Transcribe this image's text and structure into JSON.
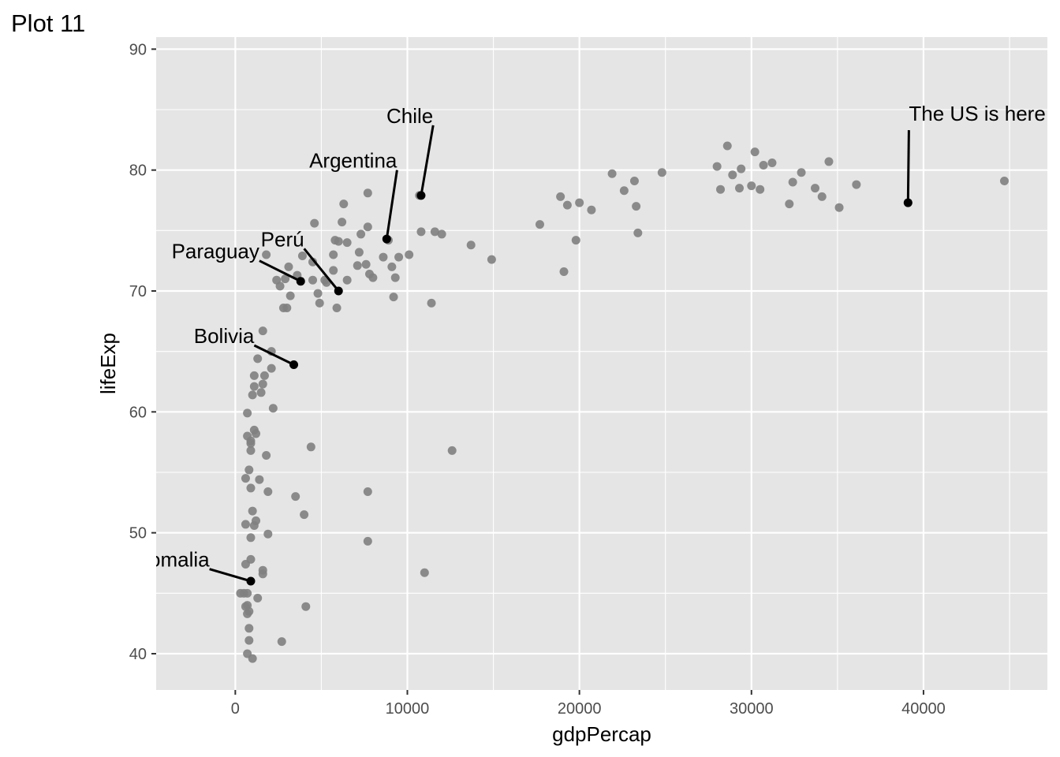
{
  "title": "Plot 11",
  "chart_data": {
    "type": "scatter",
    "xlabel": "gdpPercap",
    "ylabel": "lifeExp",
    "xlim": [
      -4600,
      47200
    ],
    "ylim": [
      37,
      91
    ],
    "x_ticks": [
      0,
      10000,
      20000,
      30000,
      40000
    ],
    "y_ticks": [
      40,
      50,
      60,
      70,
      80,
      90
    ],
    "x_tick_labels": [
      "0",
      "10000",
      "20000",
      "30000",
      "40000"
    ],
    "y_tick_labels": [
      "40",
      "50",
      "60",
      "70",
      "80",
      "90"
    ],
    "grid": true,
    "colors": {
      "panel": "#e5e5e5",
      "grid": "#ffffff",
      "point": "#7f7f7f",
      "highlight": "#000000"
    },
    "points": [
      [
        44700,
        79.1
      ],
      [
        39100,
        77.3
      ],
      [
        36100,
        78.8
      ],
      [
        35100,
        76.9
      ],
      [
        34500,
        80.7
      ],
      [
        34100,
        77.8
      ],
      [
        33700,
        78.5
      ],
      [
        32900,
        79.8
      ],
      [
        32400,
        79.0
      ],
      [
        32200,
        77.2
      ],
      [
        31200,
        80.6
      ],
      [
        30700,
        80.4
      ],
      [
        30500,
        78.4
      ],
      [
        30200,
        81.5
      ],
      [
        30000,
        78.7
      ],
      [
        29400,
        80.1
      ],
      [
        29300,
        78.5
      ],
      [
        28900,
        79.6
      ],
      [
        28600,
        82.0
      ],
      [
        28200,
        78.4
      ],
      [
        28000,
        80.3
      ],
      [
        24800,
        79.8
      ],
      [
        23400,
        74.8
      ],
      [
        23300,
        77.0
      ],
      [
        23200,
        79.1
      ],
      [
        22600,
        78.3
      ],
      [
        21900,
        79.7
      ],
      [
        20700,
        76.7
      ],
      [
        20000,
        77.3
      ],
      [
        19800,
        74.2
      ],
      [
        19300,
        77.1
      ],
      [
        19100,
        71.6
      ],
      [
        18900,
        77.8
      ],
      [
        17700,
        75.5
      ],
      [
        14900,
        72.6
      ],
      [
        13700,
        73.8
      ],
      [
        12600,
        56.8
      ],
      [
        12000,
        74.7
      ],
      [
        11600,
        74.9
      ],
      [
        11400,
        69.0
      ],
      [
        11000,
        46.7
      ],
      [
        10800,
        74.9
      ],
      [
        10700,
        77.9
      ],
      [
        10100,
        73.0
      ],
      [
        9500,
        72.8
      ],
      [
        9300,
        71.1
      ],
      [
        9200,
        69.5
      ],
      [
        9100,
        72.0
      ],
      [
        8900,
        74.2
      ],
      [
        8600,
        72.8
      ],
      [
        8000,
        71.1
      ],
      [
        7800,
        71.4
      ],
      [
        7700,
        53.4
      ],
      [
        7700,
        49.3
      ],
      [
        7700,
        78.1
      ],
      [
        7700,
        75.3
      ],
      [
        7600,
        72.2
      ],
      [
        7300,
        74.7
      ],
      [
        7200,
        73.2
      ],
      [
        7100,
        72.1
      ],
      [
        6500,
        70.9
      ],
      [
        6500,
        74.0
      ],
      [
        6300,
        77.2
      ],
      [
        6200,
        75.7
      ],
      [
        6000,
        74.1
      ],
      [
        5900,
        68.6
      ],
      [
        5800,
        74.2
      ],
      [
        5700,
        73.0
      ],
      [
        5700,
        71.7
      ],
      [
        5300,
        70.7
      ],
      [
        5200,
        70.9
      ],
      [
        4900,
        69.0
      ],
      [
        4800,
        69.8
      ],
      [
        4600,
        75.6
      ],
      [
        4500,
        70.9
      ],
      [
        4500,
        72.4
      ],
      [
        4400,
        57.1
      ],
      [
        4100,
        43.9
      ],
      [
        4000,
        51.5
      ],
      [
        3900,
        72.9
      ],
      [
        3600,
        71.3
      ],
      [
        3500,
        53.0
      ],
      [
        3200,
        69.6
      ],
      [
        3100,
        72.0
      ],
      [
        3000,
        68.6
      ],
      [
        2900,
        71.0
      ],
      [
        2800,
        68.6
      ],
      [
        2700,
        41.0
      ],
      [
        2600,
        70.4
      ],
      [
        2400,
        70.9
      ],
      [
        2200,
        60.3
      ],
      [
        2100,
        65.0
      ],
      [
        2100,
        63.6
      ],
      [
        1900,
        49.9
      ],
      [
        1900,
        53.4
      ],
      [
        1800,
        56.4
      ],
      [
        1800,
        73.0
      ],
      [
        1700,
        63.0
      ],
      [
        1600,
        66.7
      ],
      [
        1600,
        46.9
      ],
      [
        1600,
        46.6
      ],
      [
        1600,
        62.3
      ],
      [
        1500,
        61.6
      ],
      [
        1400,
        54.4
      ],
      [
        1300,
        64.4
      ],
      [
        1300,
        44.6
      ],
      [
        1200,
        51.0
      ],
      [
        1200,
        58.2
      ],
      [
        1100,
        50.6
      ],
      [
        1100,
        62.1
      ],
      [
        1100,
        63.0
      ],
      [
        1100,
        58.5
      ],
      [
        1000,
        61.4
      ],
      [
        1000,
        51.8
      ],
      [
        1000,
        39.6
      ],
      [
        900,
        47.8
      ],
      [
        900,
        56.8
      ],
      [
        900,
        57.4
      ],
      [
        900,
        57.6
      ],
      [
        900,
        49.6
      ],
      [
        900,
        53.7
      ],
      [
        800,
        43.5
      ],
      [
        800,
        55.2
      ],
      [
        800,
        41.1
      ],
      [
        800,
        42.1
      ],
      [
        700,
        45.0
      ],
      [
        700,
        44.0
      ],
      [
        700,
        43.3
      ],
      [
        700,
        40.0
      ],
      [
        700,
        58.0
      ],
      [
        700,
        59.9
      ],
      [
        600,
        50.7
      ],
      [
        600,
        54.5
      ],
      [
        600,
        47.4
      ],
      [
        600,
        43.9
      ],
      [
        300,
        45.0
      ],
      [
        500,
        45.0
      ]
    ],
    "annotations": [
      {
        "label": "Chile",
        "x": 10800,
        "y": 77.9
      },
      {
        "label": "Argentina",
        "x": 8800,
        "y": 74.3
      },
      {
        "label": "Perú",
        "x": 6000,
        "y": 70.0
      },
      {
        "label": "Paraguay",
        "x": 3800,
        "y": 70.8
      },
      {
        "label": "Bolivia",
        "x": 3400,
        "y": 63.9
      },
      {
        "label": "Somalia",
        "x": 900,
        "y": 46.0
      },
      {
        "label": "The US is here",
        "x": 39100,
        "y": 77.3
      }
    ]
  }
}
